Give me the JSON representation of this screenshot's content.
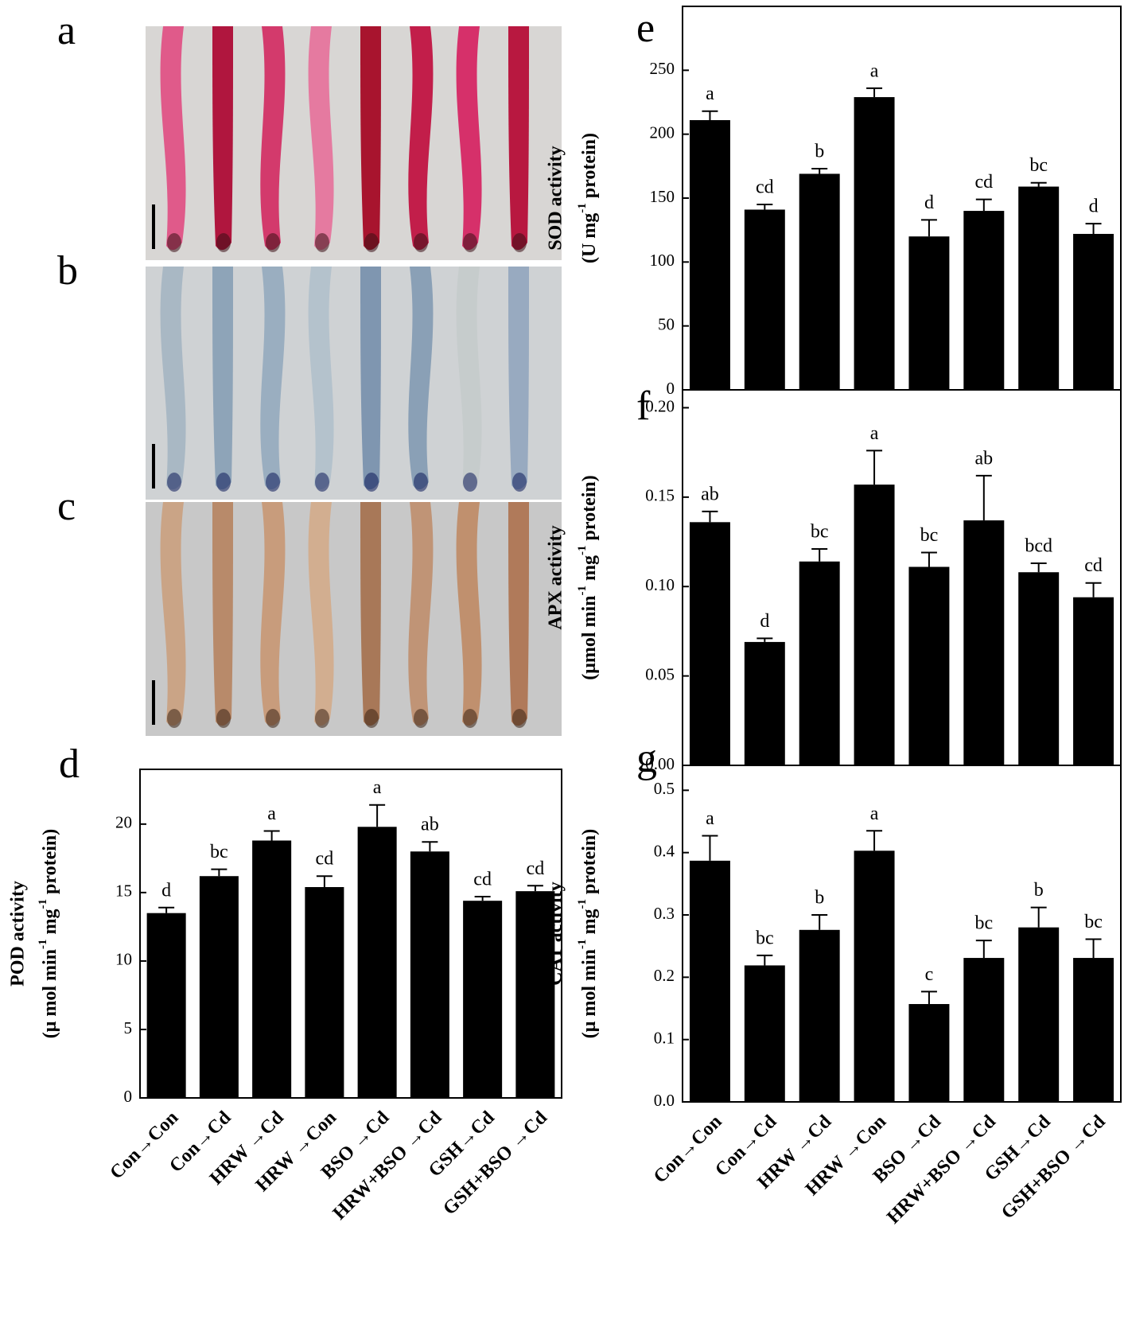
{
  "photo_panels": [
    "a",
    "b",
    "c"
  ],
  "chart_data": [
    {
      "type": "bar",
      "panel_label": "d",
      "ylabel": [
        "POD activity",
        [
          "(μ mol min",
          "-1",
          " mg",
          "-1",
          " protein)"
        ]
      ],
      "categories": [
        "Con→Con",
        "Con→Cd",
        "HRW →Cd",
        "HRW →Con",
        "BSO →Cd",
        "HRW+BSO →Cd",
        "GSH→Cd",
        "GSH+BSO →Cd"
      ],
      "values": [
        13.5,
        16.2,
        18.8,
        15.4,
        19.8,
        18.0,
        14.4,
        15.1
      ],
      "errors": [
        0.4,
        0.5,
        0.7,
        0.8,
        1.6,
        0.7,
        0.3,
        0.4
      ],
      "annotations": [
        "d",
        "bc",
        "a",
        "cd",
        "a",
        "ab",
        "cd",
        "cd"
      ],
      "color": "#000000",
      "ylim": [
        0,
        24
      ],
      "yticks": [
        0,
        5,
        10,
        15,
        20
      ]
    },
    {
      "type": "bar",
      "panel_label": "e",
      "ylabel": [
        "SOD activity",
        [
          "(U mg",
          "-1",
          " protein)"
        ]
      ],
      "values": [
        211,
        141,
        169,
        229,
        120,
        140,
        159,
        122
      ],
      "errors": [
        7,
        4,
        4,
        7,
        13,
        9,
        3,
        8
      ],
      "annotations": [
        "a",
        "cd",
        "b",
        "a",
        "d",
        "cd",
        "bc",
        "d"
      ],
      "color": "#000000",
      "ylim": [
        0,
        300
      ],
      "yticks": [
        0,
        50,
        100,
        150,
        200,
        250
      ]
    },
    {
      "type": "bar",
      "panel_label": "f",
      "ylabel": [
        "APX activity",
        [
          "(μmol min",
          "-1",
          " mg",
          "-1",
          " protein)"
        ]
      ],
      "values": [
        0.136,
        0.069,
        0.114,
        0.157,
        0.111,
        0.137,
        0.108,
        0.094
      ],
      "errors": [
        0.006,
        0.002,
        0.007,
        0.019,
        0.008,
        0.025,
        0.005,
        0.008
      ],
      "annotations": [
        "ab",
        "d",
        "bc",
        "a",
        "bc",
        "ab",
        "bcd",
        "cd"
      ],
      "color": "#000000",
      "ylim": [
        0,
        0.21
      ],
      "yticks": [
        {
          "value": 0,
          "label": "0.00"
        },
        0.05,
        {
          "value": 0.1,
          "label": "0.10"
        },
        0.15,
        {
          "value": 0.2,
          "label": "0.20"
        }
      ]
    },
    {
      "type": "bar",
      "panel_label": "g",
      "ylabel": [
        "CAT activity",
        [
          "(μ mol min",
          "-1",
          " mg",
          "-1",
          " protein)"
        ]
      ],
      "categories": [
        "Con→Con",
        "Con→Cd",
        "HRW →Cd",
        "HRW →Con",
        "BSO →Cd",
        "HRW+BSO →Cd",
        "GSH→Cd",
        "GSH+BSO →Cd"
      ],
      "values": [
        0.387,
        0.219,
        0.276,
        0.403,
        0.157,
        0.231,
        0.28,
        0.231
      ],
      "errors": [
        0.04,
        0.016,
        0.024,
        0.032,
        0.02,
        0.028,
        0.032,
        0.03
      ],
      "annotations": [
        "a",
        "bc",
        "b",
        "a",
        "c",
        "bc",
        "b",
        "bc"
      ],
      "color": "#000000",
      "ylim": [
        0,
        0.54
      ],
      "yticks": [
        {
          "value": 0,
          "label": "0.0"
        },
        0.1,
        0.2,
        0.3,
        0.4,
        0.5
      ]
    }
  ]
}
